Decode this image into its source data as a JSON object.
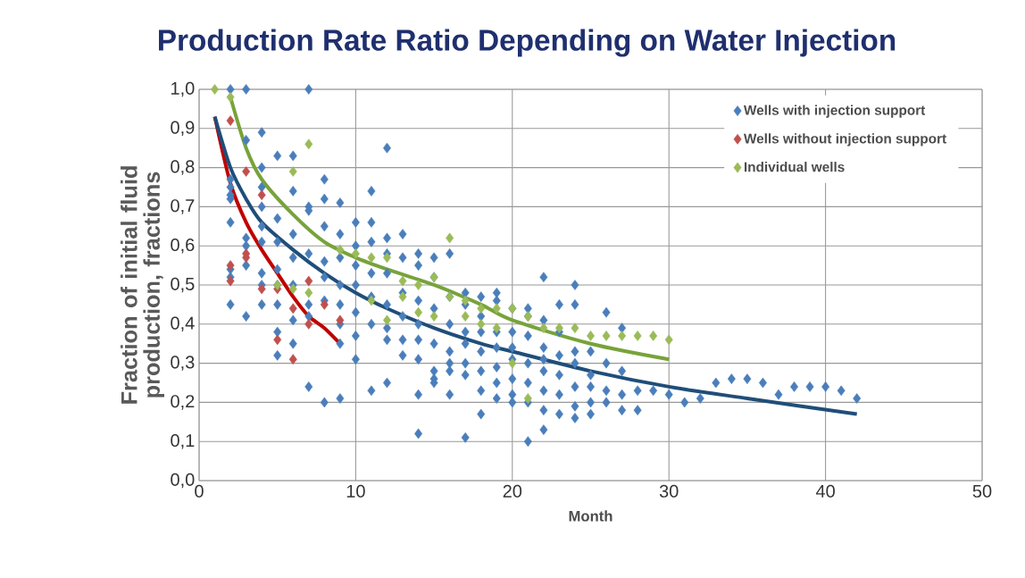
{
  "chart_data": {
    "type": "scatter",
    "title": "Production Rate Ratio Depending on Water Injection",
    "xlabel": "Month",
    "ylabel": "Fraction of initial fluid production, fractions",
    "xlim": [
      0,
      50
    ],
    "xticks": [
      0,
      10,
      20,
      30,
      40,
      50
    ],
    "ylim": [
      0,
      1.0
    ],
    "yticks": [
      {
        "value": 0,
        "label": "0,0"
      },
      {
        "value": 0.1,
        "label": "0,1"
      },
      {
        "value": 0.2,
        "label": "0,2"
      },
      {
        "value": 0.3,
        "label": "0,3"
      },
      {
        "value": 0.4,
        "label": "0,4"
      },
      {
        "value": 0.5,
        "label": "0,5"
      },
      {
        "value": 0.6,
        "label": "0,6"
      },
      {
        "value": 0.7,
        "label": "0,7"
      },
      {
        "value": 0.8,
        "label": "0,8"
      },
      {
        "value": 0.9,
        "label": "0,9"
      },
      {
        "value": 1.0,
        "label": "1,0"
      }
    ],
    "grid": true,
    "legend": "top right",
    "marker": "diamond",
    "series": [
      {
        "name": "Wells with injection support",
        "color": "#4a7ebb",
        "x": [
          2,
          2,
          2,
          2,
          2,
          2,
          2,
          2,
          2,
          3,
          3,
          3,
          3,
          3,
          3,
          4,
          4,
          4,
          4,
          4,
          4,
          4,
          4,
          4,
          5,
          5,
          5,
          5,
          5,
          5,
          5,
          5,
          6,
          6,
          6,
          6,
          6,
          6,
          6,
          7,
          7,
          7,
          7,
          7,
          7,
          7,
          8,
          8,
          8,
          8,
          8,
          8,
          8,
          9,
          9,
          9,
          9,
          9,
          9,
          9,
          9,
          10,
          10,
          10,
          10,
          10,
          10,
          10,
          11,
          11,
          11,
          11,
          11,
          11,
          11,
          12,
          12,
          12,
          12,
          12,
          12,
          12,
          12,
          13,
          13,
          13,
          13,
          13,
          13,
          14,
          14,
          14,
          14,
          14,
          14,
          14,
          14,
          15,
          15,
          15,
          15,
          15,
          15,
          15,
          16,
          16,
          16,
          16,
          16,
          16,
          16,
          17,
          17,
          17,
          17,
          17,
          17,
          17,
          18,
          18,
          18,
          18,
          18,
          18,
          18,
          19,
          19,
          19,
          19,
          19,
          19,
          19,
          20,
          20,
          20,
          20,
          20,
          20,
          20,
          21,
          21,
          21,
          21,
          21,
          21,
          21,
          22,
          22,
          22,
          22,
          22,
          22,
          22,
          22,
          23,
          23,
          23,
          23,
          23,
          23,
          24,
          24,
          24,
          24,
          24,
          24,
          24,
          25,
          25,
          25,
          25,
          25,
          26,
          26,
          26,
          26,
          27,
          27,
          27,
          27,
          28,
          28,
          29,
          30,
          31,
          32,
          33,
          34,
          35,
          36,
          37,
          38,
          39,
          40,
          41,
          42
        ],
        "values": [
          1.0,
          0.77,
          0.75,
          0.73,
          0.72,
          0.66,
          0.54,
          0.52,
          0.45,
          1.0,
          0.87,
          0.62,
          0.6,
          0.55,
          0.42,
          0.89,
          0.8,
          0.75,
          0.7,
          0.65,
          0.61,
          0.53,
          0.5,
          0.45,
          0.83,
          0.67,
          0.61,
          0.54,
          0.5,
          0.45,
          0.38,
          0.32,
          0.83,
          0.74,
          0.63,
          0.57,
          0.5,
          0.41,
          0.35,
          1.0,
          0.7,
          0.69,
          0.58,
          0.45,
          0.42,
          0.24,
          0.77,
          0.72,
          0.65,
          0.56,
          0.52,
          0.46,
          0.2,
          0.71,
          0.63,
          0.57,
          0.5,
          0.45,
          0.4,
          0.35,
          0.21,
          0.66,
          0.6,
          0.55,
          0.5,
          0.43,
          0.37,
          0.31,
          0.74,
          0.66,
          0.61,
          0.53,
          0.47,
          0.4,
          0.23,
          0.85,
          0.62,
          0.58,
          0.53,
          0.45,
          0.39,
          0.36,
          0.25,
          0.63,
          0.57,
          0.48,
          0.42,
          0.36,
          0.32,
          0.58,
          0.55,
          0.46,
          0.4,
          0.36,
          0.31,
          0.22,
          0.12,
          0.57,
          0.52,
          0.44,
          0.35,
          0.28,
          0.26,
          0.25,
          0.58,
          0.47,
          0.4,
          0.33,
          0.3,
          0.28,
          0.22,
          0.48,
          0.45,
          0.38,
          0.35,
          0.3,
          0.27,
          0.11,
          0.47,
          0.42,
          0.38,
          0.33,
          0.28,
          0.23,
          0.17,
          0.48,
          0.46,
          0.38,
          0.34,
          0.29,
          0.25,
          0.21,
          0.44,
          0.38,
          0.34,
          0.31,
          0.26,
          0.22,
          0.2,
          0.44,
          0.42,
          0.37,
          0.3,
          0.25,
          0.2,
          0.1,
          0.52,
          0.41,
          0.34,
          0.31,
          0.28,
          0.23,
          0.18,
          0.13,
          0.45,
          0.38,
          0.32,
          0.27,
          0.22,
          0.17,
          0.5,
          0.45,
          0.33,
          0.3,
          0.24,
          0.19,
          0.16,
          0.33,
          0.27,
          0.24,
          0.2,
          0.17,
          0.43,
          0.3,
          0.23,
          0.2,
          0.39,
          0.28,
          0.22,
          0.18,
          0.23,
          0.18,
          0.23,
          0.22,
          0.2,
          0.21,
          0.25,
          0.26,
          0.26,
          0.25,
          0.22,
          0.24,
          0.24,
          0.24,
          0.23,
          0.21
        ]
      },
      {
        "name": "Wells without injection support",
        "color": "#c0504d",
        "x": [
          2,
          2,
          2,
          3,
          3,
          3,
          4,
          4,
          5,
          5,
          6,
          6,
          7,
          7,
          8,
          9
        ],
        "values": [
          0.92,
          0.55,
          0.51,
          0.79,
          0.58,
          0.57,
          0.73,
          0.49,
          0.49,
          0.36,
          0.44,
          0.31,
          0.51,
          0.4,
          0.45,
          0.41
        ]
      },
      {
        "name": "Individual wells",
        "color": "#9bbb59",
        "x": [
          1,
          2,
          5,
          6,
          6,
          7,
          7,
          9,
          10,
          11,
          11,
          12,
          12,
          13,
          13,
          14,
          14,
          15,
          15,
          16,
          16,
          17,
          17,
          18,
          18,
          19,
          19,
          20,
          20,
          21,
          21,
          22,
          23,
          24,
          25,
          26,
          27,
          28,
          29,
          30
        ],
        "values": [
          1.0,
          0.98,
          0.5,
          0.79,
          0.49,
          0.86,
          0.48,
          0.59,
          0.58,
          0.57,
          0.46,
          0.57,
          0.41,
          0.51,
          0.47,
          0.5,
          0.43,
          0.52,
          0.42,
          0.62,
          0.47,
          0.46,
          0.42,
          0.44,
          0.4,
          0.44,
          0.39,
          0.44,
          0.3,
          0.42,
          0.21,
          0.39,
          0.39,
          0.39,
          0.37,
          0.37,
          0.37,
          0.37,
          0.37,
          0.36
        ]
      },
      {
        "type": "line",
        "marker": "none",
        "color": "#c00000",
        "x": [
          1,
          2,
          3,
          4,
          5,
          6,
          7,
          8,
          9
        ],
        "values": [
          0.93,
          0.76,
          0.66,
          0.59,
          0.53,
          0.47,
          0.42,
          0.39,
          0.35
        ]
      },
      {
        "type": "line",
        "marker": "none",
        "color": "#1f4e79",
        "x": [
          1,
          2,
          3,
          4,
          6,
          8,
          10,
          12,
          15,
          18,
          20,
          25,
          30,
          35,
          42
        ],
        "values": [
          0.93,
          0.8,
          0.72,
          0.66,
          0.59,
          0.53,
          0.48,
          0.44,
          0.39,
          0.35,
          0.33,
          0.28,
          0.24,
          0.21,
          0.17
        ]
      },
      {
        "type": "line",
        "marker": "none",
        "color": "#77a33a",
        "x": [
          2,
          3,
          4,
          6,
          8,
          10,
          12,
          15,
          18,
          20,
          25,
          30
        ],
        "values": [
          0.98,
          0.85,
          0.77,
          0.68,
          0.61,
          0.57,
          0.54,
          0.5,
          0.45,
          0.41,
          0.35,
          0.31
        ]
      }
    ]
  }
}
